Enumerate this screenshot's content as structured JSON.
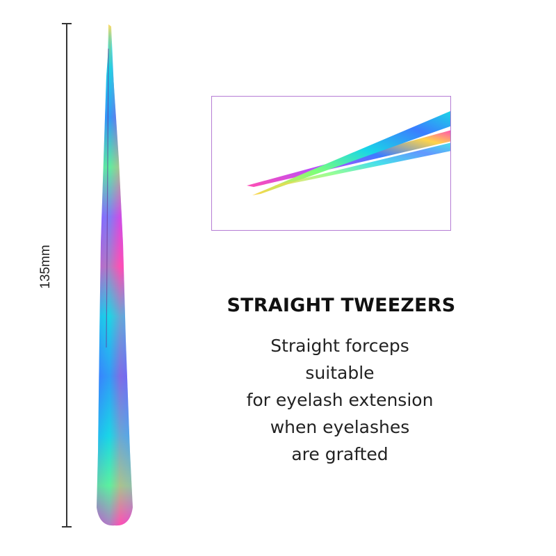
{
  "dimension": {
    "label": "135mm"
  },
  "product": {
    "title": "STRAIGHT TWEEZERS",
    "description_lines": [
      "Straight forceps",
      "suitable",
      "for eyelash extension",
      "when eyelashes",
      "are grafted"
    ]
  },
  "colors": {
    "frame": "#b57cd4",
    "text": "#222222",
    "finish": [
      "#19d7e6",
      "#3b7dff",
      "#b44cff",
      "#ff4fb3",
      "#ffd44a",
      "#7dff7a"
    ]
  },
  "icons": {
    "main": "rainbow-tweezer-icon",
    "detail": "tweezer-tip-closeup-icon"
  }
}
